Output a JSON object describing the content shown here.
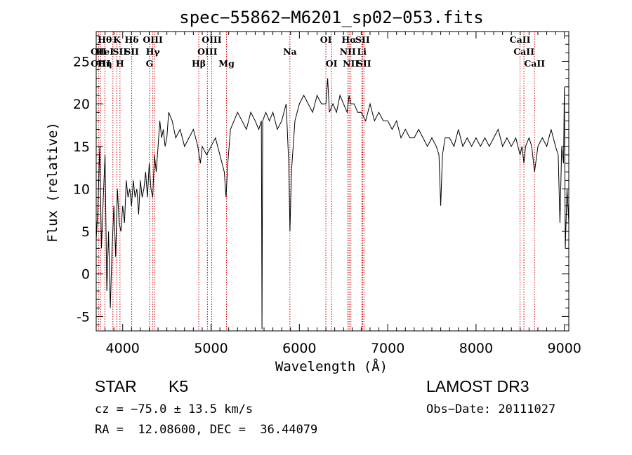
{
  "chart_data": {
    "type": "line",
    "title": "spec−55862−M6201_sp02−053.fits",
    "xlabel": "Wavelength (Å)",
    "ylabel": "Flux (relative)",
    "xlim": [
      3700,
      9050
    ],
    "ylim": [
      -6.7,
      28.5
    ],
    "xticks": [
      4000,
      5000,
      6000,
      7000,
      8000,
      9000
    ],
    "yticks": [
      -5,
      0,
      5,
      10,
      15,
      20,
      25
    ],
    "series": [
      {
        "name": "flux",
        "color": "#000000",
        "points": [
          [
            3700,
            4
          ],
          [
            3720,
            8
          ],
          [
            3740,
            15
          ],
          [
            3760,
            3
          ],
          [
            3780,
            9
          ],
          [
            3800,
            14
          ],
          [
            3820,
            -2
          ],
          [
            3840,
            5
          ],
          [
            3860,
            -4
          ],
          [
            3880,
            3
          ],
          [
            3900,
            8
          ],
          [
            3920,
            2
          ],
          [
            3940,
            10
          ],
          [
            3960,
            6
          ],
          [
            3980,
            5
          ],
          [
            4000,
            8
          ],
          [
            4020,
            6
          ],
          [
            4040,
            11
          ],
          [
            4060,
            9
          ],
          [
            4080,
            10
          ],
          [
            4100,
            8
          ],
          [
            4120,
            11
          ],
          [
            4140,
            9
          ],
          [
            4160,
            10
          ],
          [
            4180,
            7
          ],
          [
            4200,
            11
          ],
          [
            4220,
            9
          ],
          [
            4240,
            10
          ],
          [
            4260,
            12
          ],
          [
            4280,
            9
          ],
          [
            4300,
            13
          ],
          [
            4320,
            10
          ],
          [
            4340,
            9
          ],
          [
            4360,
            14
          ],
          [
            4380,
            12
          ],
          [
            4400,
            15
          ],
          [
            4420,
            18
          ],
          [
            4440,
            16
          ],
          [
            4460,
            17
          ],
          [
            4480,
            15
          ],
          [
            4500,
            16
          ],
          [
            4520,
            19
          ],
          [
            4560,
            18
          ],
          [
            4600,
            16
          ],
          [
            4650,
            17
          ],
          [
            4700,
            15
          ],
          [
            4750,
            16
          ],
          [
            4800,
            17
          ],
          [
            4850,
            15
          ],
          [
            4880,
            13
          ],
          [
            4900,
            15
          ],
          [
            4950,
            14
          ],
          [
            5000,
            15
          ],
          [
            5050,
            16
          ],
          [
            5100,
            14
          ],
          [
            5150,
            12
          ],
          [
            5170,
            9
          ],
          [
            5190,
            13
          ],
          [
            5220,
            17
          ],
          [
            5260,
            18
          ],
          [
            5300,
            19
          ],
          [
            5350,
            18
          ],
          [
            5400,
            17
          ],
          [
            5450,
            19
          ],
          [
            5500,
            18
          ],
          [
            5540,
            17
          ],
          [
            5570,
            18
          ],
          [
            5577,
            -6.5
          ],
          [
            5585,
            18
          ],
          [
            5620,
            19
          ],
          [
            5660,
            18
          ],
          [
            5700,
            19
          ],
          [
            5750,
            17
          ],
          [
            5800,
            18
          ],
          [
            5850,
            20
          ],
          [
            5880,
            13
          ],
          [
            5893,
            5
          ],
          [
            5910,
            12
          ],
          [
            5950,
            18
          ],
          [
            6000,
            20
          ],
          [
            6050,
            21
          ],
          [
            6100,
            20
          ],
          [
            6150,
            19
          ],
          [
            6200,
            21
          ],
          [
            6250,
            20
          ],
          [
            6300,
            20
          ],
          [
            6320,
            23
          ],
          [
            6340,
            19
          ],
          [
            6380,
            20
          ],
          [
            6420,
            19
          ],
          [
            6460,
            21
          ],
          [
            6500,
            20
          ],
          [
            6540,
            19
          ],
          [
            6563,
            21
          ],
          [
            6580,
            20
          ],
          [
            6620,
            20
          ],
          [
            6660,
            19
          ],
          [
            6700,
            19
          ],
          [
            6750,
            18
          ],
          [
            6800,
            20
          ],
          [
            6850,
            18
          ],
          [
            6900,
            19
          ],
          [
            6950,
            18
          ],
          [
            7000,
            18
          ],
          [
            7050,
            17
          ],
          [
            7100,
            18
          ],
          [
            7150,
            16
          ],
          [
            7200,
            17
          ],
          [
            7250,
            16
          ],
          [
            7300,
            16
          ],
          [
            7350,
            17
          ],
          [
            7400,
            16
          ],
          [
            7450,
            15
          ],
          [
            7500,
            16
          ],
          [
            7550,
            15
          ],
          [
            7580,
            14
          ],
          [
            7600,
            8
          ],
          [
            7620,
            14
          ],
          [
            7650,
            16
          ],
          [
            7700,
            16
          ],
          [
            7750,
            15
          ],
          [
            7800,
            17
          ],
          [
            7850,
            15
          ],
          [
            7900,
            16
          ],
          [
            7950,
            15
          ],
          [
            8000,
            16
          ],
          [
            8050,
            15
          ],
          [
            8100,
            16
          ],
          [
            8150,
            15
          ],
          [
            8200,
            16
          ],
          [
            8250,
            17
          ],
          [
            8300,
            15
          ],
          [
            8350,
            16
          ],
          [
            8400,
            15
          ],
          [
            8450,
            16
          ],
          [
            8498,
            14
          ],
          [
            8520,
            15
          ],
          [
            8542,
            13
          ],
          [
            8560,
            15
          ],
          [
            8600,
            16
          ],
          [
            8630,
            15
          ],
          [
            8662,
            12
          ],
          [
            8700,
            15
          ],
          [
            8750,
            16
          ],
          [
            8800,
            15
          ],
          [
            8850,
            17
          ],
          [
            8900,
            15
          ],
          [
            8930,
            14
          ],
          [
            8950,
            6
          ],
          [
            8970,
            15
          ],
          [
            8990,
            13
          ],
          [
            9000,
            22
          ],
          [
            9010,
            3
          ],
          [
            9030,
            10
          ],
          [
            9050,
            6
          ]
        ]
      }
    ],
    "line_markers": [
      {
        "wavelength": 3726,
        "labels": [
          "OII"
        ],
        "row": 1
      },
      {
        "wavelength": 3750,
        "labels": [
          "OIII"
        ],
        "row": 2
      },
      {
        "wavelength": 3798,
        "labels": [
          "Hθ",
          "HeI",
          "Hη"
        ],
        "row": 0
      },
      {
        "wavelength": 3889,
        "labels": [],
        "row": 0
      },
      {
        "wavelength": 3934,
        "labels": [
          "K"
        ],
        "row": 0
      },
      {
        "wavelength": 3969,
        "labels": [
          "SII",
          "H"
        ],
        "row": 1
      },
      {
        "wavelength": 4102,
        "labels": [
          "Hδ",
          "SII"
        ],
        "row": 0
      },
      {
        "wavelength": 4304,
        "labels": [
          "G"
        ],
        "row": 2
      },
      {
        "wavelength": 4341,
        "labels": [
          "OIII",
          "Hγ"
        ],
        "row": 0
      },
      {
        "wavelength": 4363,
        "labels": [],
        "row": 0
      },
      {
        "wavelength": 4861,
        "labels": [
          "Hβ"
        ],
        "row": 2
      },
      {
        "wavelength": 4959,
        "labels": [
          "OIII"
        ],
        "row": 1
      },
      {
        "wavelength": 5007,
        "labels": [
          "OIII"
        ],
        "row": 0
      },
      {
        "wavelength": 5175,
        "labels": [
          "Mg"
        ],
        "row": 2
      },
      {
        "wavelength": 5893,
        "labels": [
          "Na"
        ],
        "row": 1
      },
      {
        "wavelength": 6300,
        "labels": [
          "OI"
        ],
        "row": 0
      },
      {
        "wavelength": 6364,
        "labels": [
          "OI"
        ],
        "row": 2
      },
      {
        "wavelength": 6548,
        "labels": [
          "NII"
        ],
        "row": 1
      },
      {
        "wavelength": 6563,
        "labels": [
          "Hα"
        ],
        "row": 0
      },
      {
        "wavelength": 6583,
        "labels": [
          "NII"
        ],
        "row": 2
      },
      {
        "wavelength": 6707,
        "labels": [
          "Li"
        ],
        "row": 1
      },
      {
        "wavelength": 6716,
        "labels": [
          "SII"
        ],
        "row": 0
      },
      {
        "wavelength": 6731,
        "labels": [
          "SII"
        ],
        "row": 2
      },
      {
        "wavelength": 8498,
        "labels": [
          "CaII"
        ],
        "row": 0
      },
      {
        "wavelength": 8542,
        "labels": [
          "CaII"
        ],
        "row": 1
      },
      {
        "wavelength": 8662,
        "labels": [
          "CaII"
        ],
        "row": 2
      }
    ],
    "marker_color": "#cc0000"
  },
  "info": {
    "obj_class": "STAR",
    "subclass": "K5",
    "survey": "LAMOST DR3",
    "cz": "cz = −75.0 ± 13.5 km/s",
    "obs_date": "Obs−Date: 20111027",
    "coords": "RA =  12.08600, DEC =  36.44079"
  }
}
